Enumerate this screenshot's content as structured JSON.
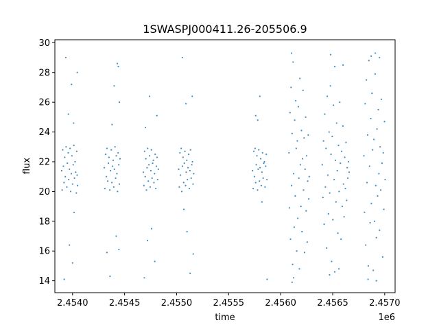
{
  "chart_data": {
    "type": "scatter",
    "title": "1SWASPJ000411.26-205506.9",
    "xlabel": "time",
    "ylabel": "flux",
    "x_offset_label": "1e6",
    "xlim": [
      2453830,
      2457100
    ],
    "ylim": [
      13.2,
      30.2
    ],
    "x_ticks": [
      2454000,
      2454500,
      2455000,
      2455500,
      2456000,
      2456500,
      2457000
    ],
    "x_tick_labels": [
      "2.4540",
      "2.4545",
      "2.4550",
      "2.4555",
      "2.4560",
      "2.4565",
      "2.4570"
    ],
    "y_ticks": [
      14,
      16,
      18,
      20,
      22,
      24,
      26,
      28,
      30
    ],
    "y_tick_labels": [
      "14",
      "16",
      "18",
      "20",
      "22",
      "24",
      "26",
      "28",
      "30"
    ],
    "grid": false,
    "marker_color": "#1f77b4",
    "series": [
      {
        "values": [
          [
            2453895,
            21.4
          ],
          [
            2453900,
            20.1
          ],
          [
            2453905,
            22.8
          ],
          [
            2453912,
            21.7
          ],
          [
            2453918,
            20.6
          ],
          [
            2453925,
            22.3
          ],
          [
            2453930,
            21.0
          ],
          [
            2453938,
            23.0
          ],
          [
            2453945,
            20.3
          ],
          [
            2453950,
            21.9
          ],
          [
            2453958,
            22.6
          ],
          [
            2453963,
            20.8
          ],
          [
            2453970,
            21.5
          ],
          [
            2453976,
            22.9
          ],
          [
            2453982,
            20.0
          ],
          [
            2453988,
            21.2
          ],
          [
            2453994,
            22.4
          ],
          [
            2454000,
            20.5
          ],
          [
            2454006,
            21.8
          ],
          [
            2454012,
            23.1
          ],
          [
            2454018,
            20.9
          ],
          [
            2454024,
            22.0
          ],
          [
            2454030,
            21.3
          ],
          [
            2454036,
            19.9
          ],
          [
            2454040,
            22.7
          ],
          [
            2454044,
            21.1
          ],
          [
            2454048,
            20.4
          ],
          [
            2453935,
            29.0
          ],
          [
            2453990,
            27.2
          ],
          [
            2453970,
            16.4
          ],
          [
            2454000,
            15.2
          ],
          [
            2453920,
            14.1
          ],
          [
            2454015,
            18.6
          ],
          [
            2454045,
            28.0
          ],
          [
            2453960,
            25.2
          ],
          [
            2454010,
            24.6
          ],
          [
            2454305,
            21.6
          ],
          [
            2454310,
            20.2
          ],
          [
            2454318,
            22.5
          ],
          [
            2454325,
            21.0
          ],
          [
            2454330,
            22.9
          ],
          [
            2454338,
            20.7
          ],
          [
            2454345,
            21.9
          ],
          [
            2454350,
            22.3
          ],
          [
            2454358,
            20.1
          ],
          [
            2454365,
            21.4
          ],
          [
            2454372,
            22.8
          ],
          [
            2454378,
            20.6
          ],
          [
            2454385,
            21.7
          ],
          [
            2454390,
            22.1
          ],
          [
            2454396,
            20.3
          ],
          [
            2454402,
            21.5
          ],
          [
            2454408,
            23.0
          ],
          [
            2454414,
            20.9
          ],
          [
            2454420,
            22.4
          ],
          [
            2454426,
            21.2
          ],
          [
            2454432,
            20.0
          ],
          [
            2454438,
            22.6
          ],
          [
            2454444,
            21.8
          ],
          [
            2454450,
            20.5
          ],
          [
            2454456,
            22.2
          ],
          [
            2454360,
            14.3
          ],
          [
            2454330,
            15.9
          ],
          [
            2454400,
            27.1
          ],
          [
            2454430,
            28.6
          ],
          [
            2454440,
            28.4
          ],
          [
            2454420,
            17.0
          ],
          [
            2454445,
            16.1
          ],
          [
            2454380,
            24.5
          ],
          [
            2454450,
            26.0
          ],
          [
            2454680,
            21.3
          ],
          [
            2454686,
            20.4
          ],
          [
            2454692,
            22.7
          ],
          [
            2454698,
            21.0
          ],
          [
            2454704,
            22.2
          ],
          [
            2454710,
            20.1
          ],
          [
            2454716,
            21.6
          ],
          [
            2454722,
            22.9
          ],
          [
            2454728,
            20.7
          ],
          [
            2454734,
            21.8
          ],
          [
            2454740,
            22.4
          ],
          [
            2454746,
            20.3
          ],
          [
            2454752,
            21.4
          ],
          [
            2454758,
            22.8
          ],
          [
            2454764,
            20.9
          ],
          [
            2454770,
            21.9
          ],
          [
            2454776,
            22.1
          ],
          [
            2454782,
            20.6
          ],
          [
            2454788,
            21.2
          ],
          [
            2454794,
            22.5
          ],
          [
            2454800,
            20.2
          ],
          [
            2454806,
            21.7
          ],
          [
            2454812,
            22.3
          ],
          [
            2454818,
            20.8
          ],
          [
            2454824,
            21.5
          ],
          [
            2454690,
            14.2
          ],
          [
            2454720,
            16.7
          ],
          [
            2454790,
            15.3
          ],
          [
            2454760,
            17.5
          ],
          [
            2454740,
            26.4
          ],
          [
            2454700,
            24.3
          ],
          [
            2454810,
            25.1
          ],
          [
            2455020,
            21.5
          ],
          [
            2455026,
            20.3
          ],
          [
            2455032,
            22.6
          ],
          [
            2455038,
            21.1
          ],
          [
            2455044,
            22.9
          ],
          [
            2455050,
            20.0
          ],
          [
            2455056,
            21.7
          ],
          [
            2455062,
            22.3
          ],
          [
            2455068,
            20.6
          ],
          [
            2455074,
            21.9
          ],
          [
            2455080,
            22.7
          ],
          [
            2455086,
            20.4
          ],
          [
            2455092,
            21.3
          ],
          [
            2455098,
            22.1
          ],
          [
            2455104,
            20.8
          ],
          [
            2455110,
            21.6
          ],
          [
            2455116,
            22.5
          ],
          [
            2455122,
            20.2
          ],
          [
            2455128,
            21.4
          ],
          [
            2455134,
            22.8
          ],
          [
            2455140,
            20.9
          ],
          [
            2455146,
            21.8
          ],
          [
            2455152,
            22.0
          ],
          [
            2455158,
            20.5
          ],
          [
            2455164,
            21.2
          ],
          [
            2455055,
            29.0
          ],
          [
            2455070,
            18.8
          ],
          [
            2455100,
            17.3
          ],
          [
            2455130,
            14.5
          ],
          [
            2455160,
            15.8
          ],
          [
            2455090,
            25.9
          ],
          [
            2455150,
            26.4
          ],
          [
            2455730,
            21.4
          ],
          [
            2455736,
            20.2
          ],
          [
            2455742,
            22.7
          ],
          [
            2455748,
            21.0
          ],
          [
            2455754,
            22.9
          ],
          [
            2455760,
            20.6
          ],
          [
            2455766,
            21.8
          ],
          [
            2455772,
            22.4
          ],
          [
            2455778,
            20.1
          ],
          [
            2455784,
            21.5
          ],
          [
            2455790,
            22.8
          ],
          [
            2455796,
            20.7
          ],
          [
            2455802,
            21.6
          ],
          [
            2455808,
            22.2
          ],
          [
            2455814,
            20.4
          ],
          [
            2455820,
            21.3
          ],
          [
            2455826,
            22.6
          ],
          [
            2455832,
            20.9
          ],
          [
            2455838,
            21.9
          ],
          [
            2455844,
            22.0
          ],
          [
            2455850,
            20.3
          ],
          [
            2455856,
            21.7
          ],
          [
            2455862,
            22.5
          ],
          [
            2455868,
            20.8
          ],
          [
            2455760,
            25.1
          ],
          [
            2455800,
            26.4
          ],
          [
            2455820,
            19.3
          ],
          [
            2455870,
            14.1
          ],
          [
            2455780,
            24.8
          ],
          [
            2456080,
            22.6
          ],
          [
            2456085,
            18.9
          ],
          [
            2456090,
            25.3
          ],
          [
            2456095,
            16.8
          ],
          [
            2456100,
            27.0
          ],
          [
            2456105,
            20.4
          ],
          [
            2456110,
            23.9
          ],
          [
            2456115,
            15.1
          ],
          [
            2456120,
            28.7
          ],
          [
            2456125,
            21.2
          ],
          [
            2456130,
            17.6
          ],
          [
            2456135,
            24.8
          ],
          [
            2456140,
            19.7
          ],
          [
            2456145,
            26.1
          ],
          [
            2456150,
            22.9
          ],
          [
            2456155,
            16.0
          ],
          [
            2456160,
            23.4
          ],
          [
            2456165,
            18.2
          ],
          [
            2456170,
            25.7
          ],
          [
            2456175,
            20.9
          ],
          [
            2456180,
            14.8
          ],
          [
            2456185,
            27.6
          ],
          [
            2456190,
            21.8
          ],
          [
            2456195,
            19.0
          ],
          [
            2456200,
            24.1
          ],
          [
            2456205,
            17.3
          ],
          [
            2456210,
            22.2
          ],
          [
            2456215,
            26.8
          ],
          [
            2456220,
            20.1
          ],
          [
            2456225,
            23.6
          ],
          [
            2456230,
            15.9
          ],
          [
            2456235,
            21.5
          ],
          [
            2456240,
            25.0
          ],
          [
            2456245,
            18.7
          ],
          [
            2456250,
            22.4
          ],
          [
            2456255,
            16.6
          ],
          [
            2456260,
            20.7
          ],
          [
            2456265,
            23.8
          ],
          [
            2456270,
            19.5
          ],
          [
            2456275,
            21.0
          ],
          [
            2456105,
            29.3
          ],
          [
            2456110,
            13.9
          ],
          [
            2456125,
            14.2
          ],
          [
            2456400,
            21.8
          ],
          [
            2456406,
            19.6
          ],
          [
            2456412,
            23.4
          ],
          [
            2456418,
            17.8
          ],
          [
            2456424,
            25.2
          ],
          [
            2456430,
            20.3
          ],
          [
            2456436,
            22.9
          ],
          [
            2456442,
            16.2
          ],
          [
            2456448,
            26.4
          ],
          [
            2456454,
            21.1
          ],
          [
            2456460,
            18.5
          ],
          [
            2456466,
            24.0
          ],
          [
            2456472,
            19.9
          ],
          [
            2456478,
            27.1
          ],
          [
            2456484,
            22.5
          ],
          [
            2456490,
            15.3
          ],
          [
            2456496,
            23.7
          ],
          [
            2456502,
            18.1
          ],
          [
            2456508,
            25.8
          ],
          [
            2456514,
            20.8
          ],
          [
            2456520,
            14.6
          ],
          [
            2456526,
            22.1
          ],
          [
            2456532,
            19.3
          ],
          [
            2456538,
            24.6
          ],
          [
            2456544,
            21.4
          ],
          [
            2456550,
            17.2
          ],
          [
            2456556,
            23.1
          ],
          [
            2456562,
            20.0
          ],
          [
            2456568,
            26.0
          ],
          [
            2456574,
            21.9
          ],
          [
            2456580,
            16.8
          ],
          [
            2456586,
            22.7
          ],
          [
            2456592,
            19.0
          ],
          [
            2456598,
            24.4
          ],
          [
            2456604,
            20.5
          ],
          [
            2456610,
            18.3
          ],
          [
            2456616,
            22.3
          ],
          [
            2456622,
            20.2
          ],
          [
            2456628,
            23.3
          ],
          [
            2456634,
            19.4
          ],
          [
            2456640,
            21.6
          ],
          [
            2456646,
            20.9
          ],
          [
            2456652,
            22.0
          ],
          [
            2456658,
            21.3
          ],
          [
            2456480,
            29.2
          ],
          [
            2456520,
            28.4
          ],
          [
            2456600,
            28.5
          ],
          [
            2456470,
            14.4
          ],
          [
            2456560,
            14.8
          ],
          [
            2456800,
            22.4
          ],
          [
            2456806,
            18.6
          ],
          [
            2456812,
            25.9
          ],
          [
            2456818,
            16.4
          ],
          [
            2456824,
            27.5
          ],
          [
            2456830,
            20.6
          ],
          [
            2456836,
            23.8
          ],
          [
            2456842,
            15.0
          ],
          [
            2456848,
            28.8
          ],
          [
            2456854,
            21.7
          ],
          [
            2456860,
            17.9
          ],
          [
            2456866,
            24.9
          ],
          [
            2456872,
            19.2
          ],
          [
            2456878,
            26.6
          ],
          [
            2456884,
            22.8
          ],
          [
            2456890,
            14.7
          ],
          [
            2456896,
            23.5
          ],
          [
            2456902,
            18.0
          ],
          [
            2456908,
            27.9
          ],
          [
            2456914,
            20.4
          ],
          [
            2456920,
            16.9
          ],
          [
            2456926,
            24.2
          ],
          [
            2456932,
            19.7
          ],
          [
            2456938,
            25.5
          ],
          [
            2456944,
            21.2
          ],
          [
            2456950,
            17.4
          ],
          [
            2456956,
            23.0
          ],
          [
            2456962,
            20.1
          ],
          [
            2456968,
            26.2
          ],
          [
            2456974,
            21.9
          ],
          [
            2456980,
            15.6
          ],
          [
            2456986,
            22.6
          ],
          [
            2456992,
            18.8
          ],
          [
            2456998,
            24.7
          ],
          [
            2457004,
            20.8
          ],
          [
            2456870,
            29.1
          ],
          [
            2456910,
            29.3
          ],
          [
            2456950,
            29.0
          ],
          [
            2456840,
            14.1
          ],
          [
            2456920,
            14.0
          ]
        ]
      }
    ]
  }
}
